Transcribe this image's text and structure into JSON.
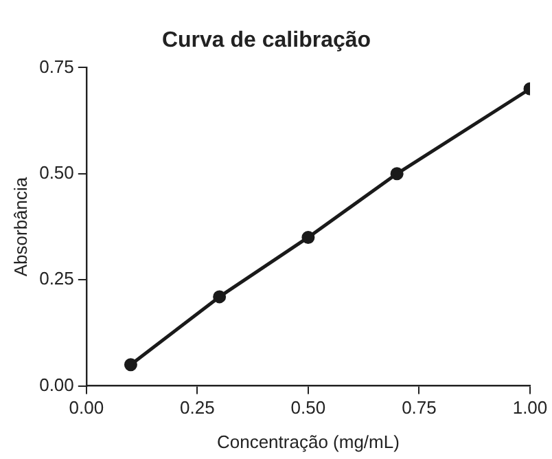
{
  "chart_data": {
    "type": "line",
    "title": "Curva de calibração",
    "xlabel": "Concentração (mg/mL)",
    "ylabel": "Absorbância",
    "x": [
      0.1,
      0.3,
      0.5,
      0.7,
      1.0
    ],
    "series": [
      {
        "color": "#1a1a1a",
        "values": [
          0.05,
          0.21,
          0.35,
          0.5,
          0.7
        ]
      }
    ],
    "xlim": [
      0,
      1
    ],
    "ylim": [
      0,
      0.75
    ],
    "xticks": [
      {
        "value": 0,
        "label": "0.00"
      },
      {
        "value": 0.25,
        "label": "0.25"
      },
      {
        "value": 0.5,
        "label": "0.50"
      },
      {
        "value": 0.75,
        "label": "0.75"
      },
      {
        "value": 1,
        "label": "1.00"
      }
    ],
    "yticks": [
      {
        "value": 0,
        "label": "0.00"
      },
      {
        "value": 0.25,
        "label": "0.25"
      },
      {
        "value": 0.5,
        "label": "0.50"
      },
      {
        "value": 0.75,
        "label": "0.75"
      }
    ],
    "grid": false,
    "legend": false,
    "marker": "circle",
    "line_style": "solid"
  }
}
